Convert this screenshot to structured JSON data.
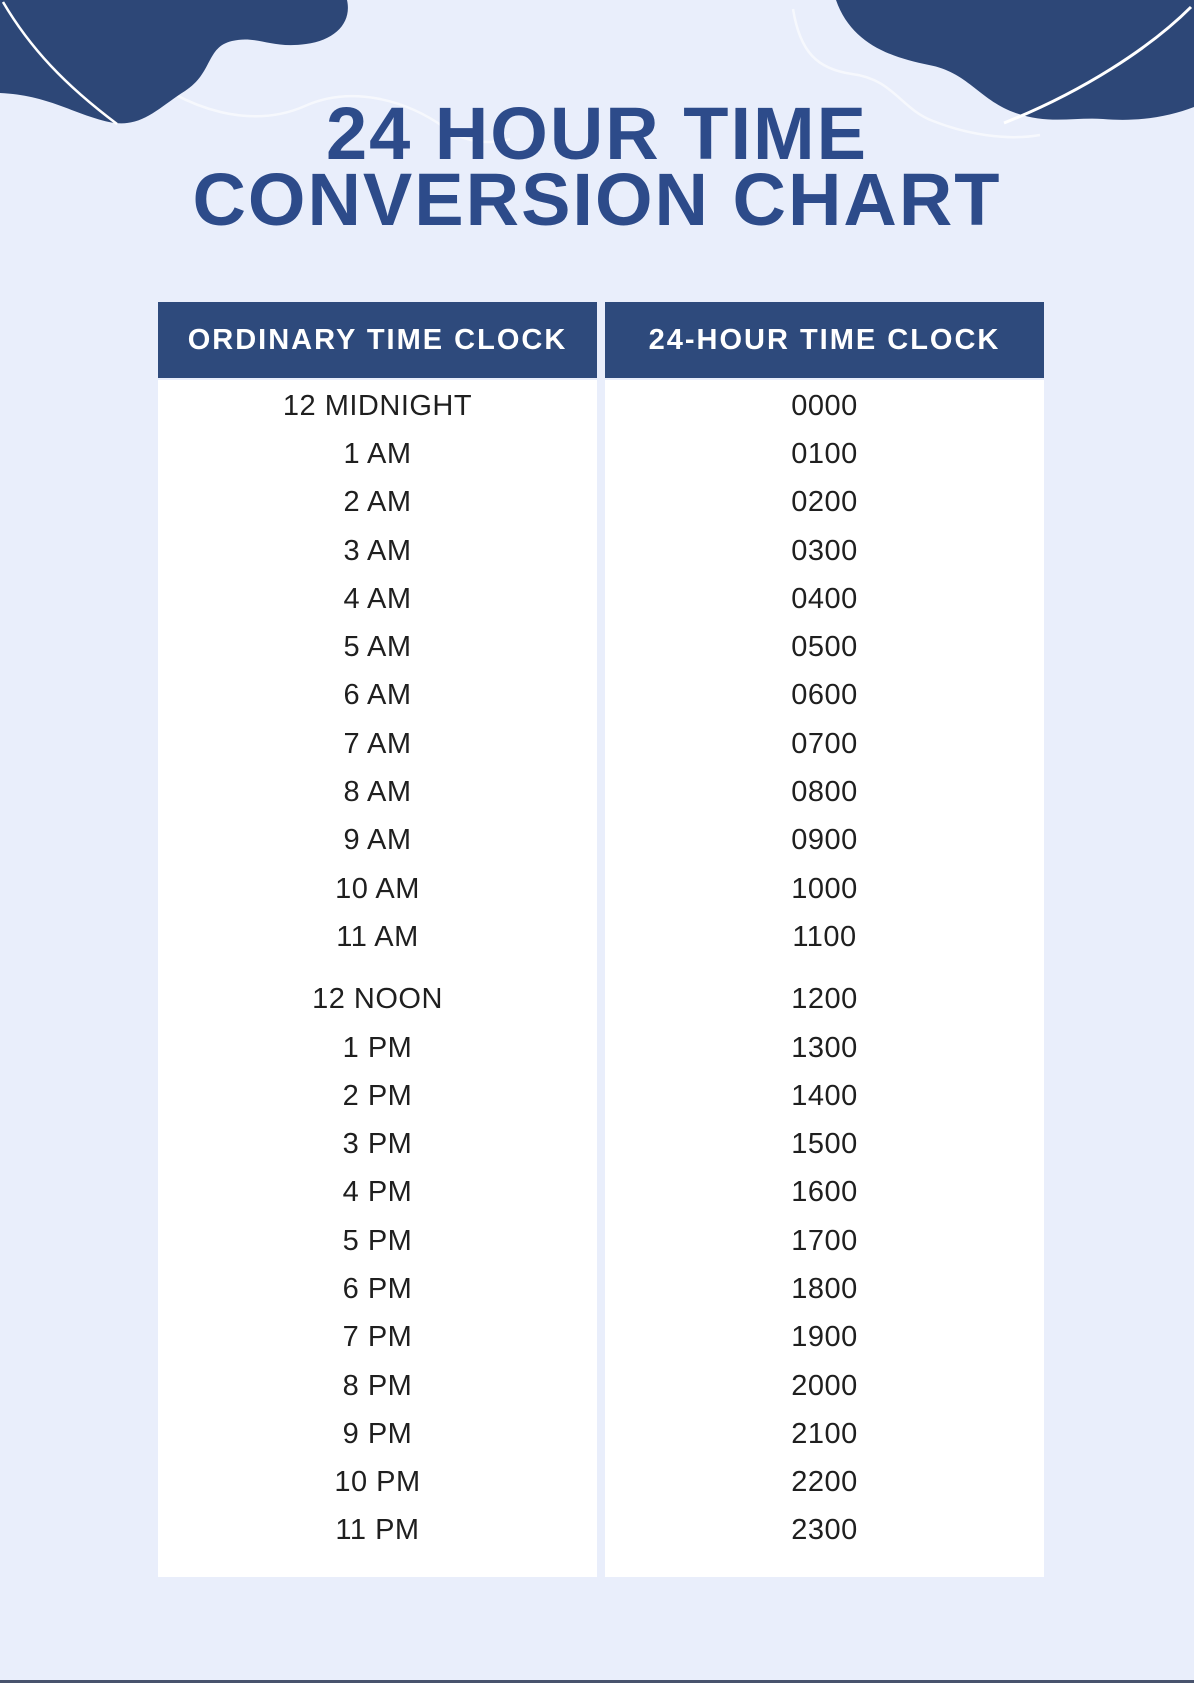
{
  "header": {
    "title_line1": "24 HOUR TIME",
    "title_line2": "CONVERSION CHART"
  },
  "table": {
    "columns": [
      {
        "id": "ordinary",
        "header": "ORDINARY TIME CLOCK"
      },
      {
        "id": "military",
        "header": "24-HOUR TIME CLOCK"
      }
    ],
    "rows": [
      {
        "ordinary": "12 MIDNIGHT",
        "military": "0000"
      },
      {
        "ordinary": "1 AM",
        "military": "0100"
      },
      {
        "ordinary": "2 AM",
        "military": "0200"
      },
      {
        "ordinary": "3 AM",
        "military": "0300"
      },
      {
        "ordinary": "4 AM",
        "military": "0400"
      },
      {
        "ordinary": "5 AM",
        "military": "0500"
      },
      {
        "ordinary": "6 AM",
        "military": "0600"
      },
      {
        "ordinary": "7 AM",
        "military": "0700"
      },
      {
        "ordinary": "8 AM",
        "military": "0800"
      },
      {
        "ordinary": "9 AM",
        "military": "0900"
      },
      {
        "ordinary": "10 AM",
        "military": "1000"
      },
      {
        "ordinary": "11 AM",
        "military": "1100"
      },
      {
        "ordinary": "12 NOON",
        "military": "1200",
        "section_break": true
      },
      {
        "ordinary": "1 PM",
        "military": "1300"
      },
      {
        "ordinary": "2 PM",
        "military": "1400"
      },
      {
        "ordinary": "3 PM",
        "military": "1500"
      },
      {
        "ordinary": "4 PM",
        "military": "1600"
      },
      {
        "ordinary": "5 PM",
        "military": "1700"
      },
      {
        "ordinary": "6 PM",
        "military": "1800"
      },
      {
        "ordinary": "7 PM",
        "military": "1900"
      },
      {
        "ordinary": "8 PM",
        "military": "2000"
      },
      {
        "ordinary": "9 PM",
        "military": "2100"
      },
      {
        "ordinary": "10 PM",
        "military": "2200"
      },
      {
        "ordinary": "11 PM",
        "military": "2300"
      }
    ]
  },
  "colors": {
    "page_background": "#e9eefb",
    "corner_blob_navy": "#2d4777",
    "header_navy": "#2e4a7c",
    "title_navy": "#2d4b8a",
    "body_text": "#1f1f1f",
    "column_background": "#ffffff",
    "bottom_edge": "#2b3754"
  }
}
